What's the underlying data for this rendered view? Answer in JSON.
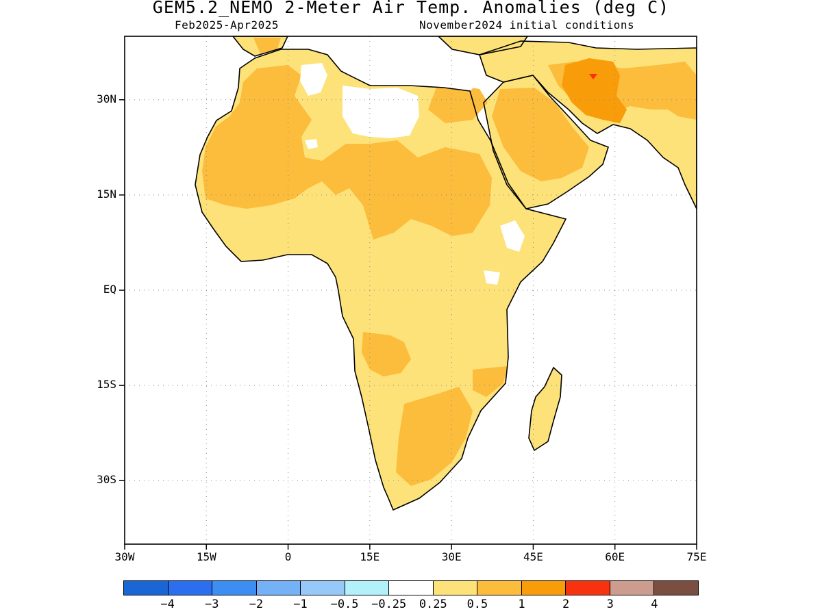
{
  "header": {
    "title": "GEM5.2_NEMO 2-Meter Air Temp. Anomalies (deg C)",
    "period": "Feb2025-Apr2025",
    "init": "November2024 initial conditions"
  },
  "axes": {
    "lat_labels": [
      "30N",
      "15N",
      "EQ",
      "15S",
      "30S"
    ],
    "lat_values": [
      30,
      15,
      0,
      -15,
      -30
    ],
    "lon_labels": [
      "30W",
      "15W",
      "0",
      "15E",
      "30E",
      "45E",
      "60E",
      "75E"
    ],
    "lon_values": [
      -30,
      -15,
      0,
      15,
      30,
      45,
      60,
      75
    ],
    "lon_range": [
      -30,
      75
    ],
    "lat_range": [
      -40,
      40
    ],
    "grid": "dotted"
  },
  "colorbar": {
    "colors": [
      "#1a66d6",
      "#2b6ff0",
      "#3d8ef3",
      "#74b1f6",
      "#96c8fa",
      "#b2f0fa",
      "#ffffff",
      "#fde27a",
      "#fcbc3c",
      "#f99c0a",
      "#f7320e",
      "#cc9c8e",
      "#7a4e40"
    ],
    "labels": [
      "-4",
      "-3",
      "-2",
      "-1",
      "-0.5",
      "-0.25",
      "0.25",
      "0.5",
      "1",
      "2",
      "3",
      "4"
    ]
  },
  "map": {
    "land_outline_color": "#000000",
    "colors": {
      "light": "#fde27a",
      "mid": "#fcbc3c",
      "high": "#f99c0a",
      "max": "#f7320e",
      "none": "#ffffff"
    }
  }
}
